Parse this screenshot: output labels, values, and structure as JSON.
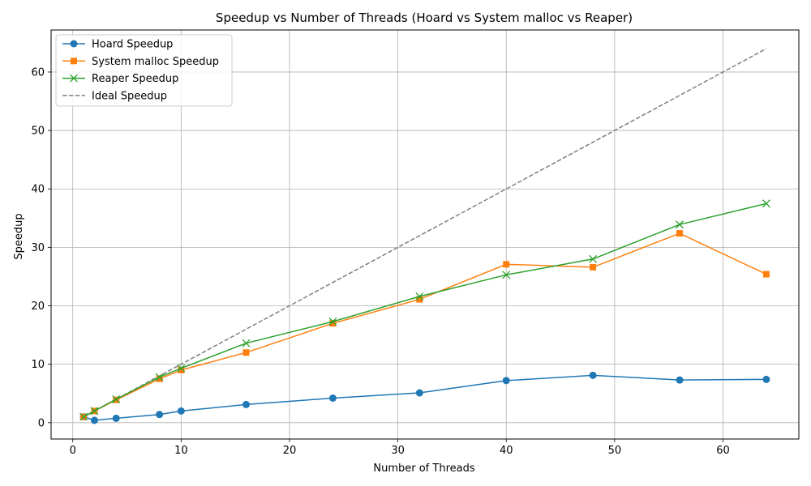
{
  "chart_data": {
    "type": "line",
    "title": "Speedup vs Number of Threads (Hoard vs System malloc vs Reaper)",
    "xlabel": "Number of Threads",
    "ylabel": "Speedup",
    "xlim": [
      -2,
      67
    ],
    "ylim": [
      -2.8,
      67.2
    ],
    "xticks": [
      0,
      10,
      20,
      30,
      40,
      50,
      60
    ],
    "yticks": [
      0,
      10,
      20,
      30,
      40,
      50,
      60
    ],
    "grid": true,
    "legend_position": "top-left",
    "series": [
      {
        "name": "Hoard Speedup",
        "color": "#1f77b4",
        "marker": "circle",
        "dash": "solid",
        "x": [
          1,
          2,
          4,
          8,
          10,
          16,
          24,
          32,
          40,
          48,
          56,
          64
        ],
        "y": [
          1.0,
          0.4,
          0.75,
          1.4,
          2.0,
          3.1,
          4.2,
          5.1,
          7.2,
          8.1,
          7.3,
          7.4
        ]
      },
      {
        "name": "System malloc Speedup",
        "color": "#ff7f0e",
        "marker": "square",
        "dash": "solid",
        "x": [
          1,
          2,
          4,
          8,
          10,
          16,
          24,
          32,
          40,
          48,
          56,
          64
        ],
        "y": [
          1.0,
          2.0,
          3.9,
          7.5,
          9.0,
          12.0,
          17.0,
          21.1,
          27.1,
          26.6,
          32.4,
          25.4
        ]
      },
      {
        "name": "Reaper Speedup",
        "color": "#2ca02c",
        "marker": "x",
        "dash": "solid",
        "x": [
          1,
          2,
          4,
          8,
          10,
          16,
          24,
          32,
          40,
          48,
          56,
          64
        ],
        "y": [
          1.0,
          2.0,
          4.0,
          7.8,
          9.3,
          13.6,
          17.3,
          21.6,
          25.3,
          28.0,
          33.9,
          37.5
        ]
      },
      {
        "name": "Ideal Speedup",
        "color": "#7f7f7f",
        "marker": "none",
        "dash": "dashed",
        "x": [
          1,
          64
        ],
        "y": [
          1,
          64
        ]
      }
    ]
  }
}
